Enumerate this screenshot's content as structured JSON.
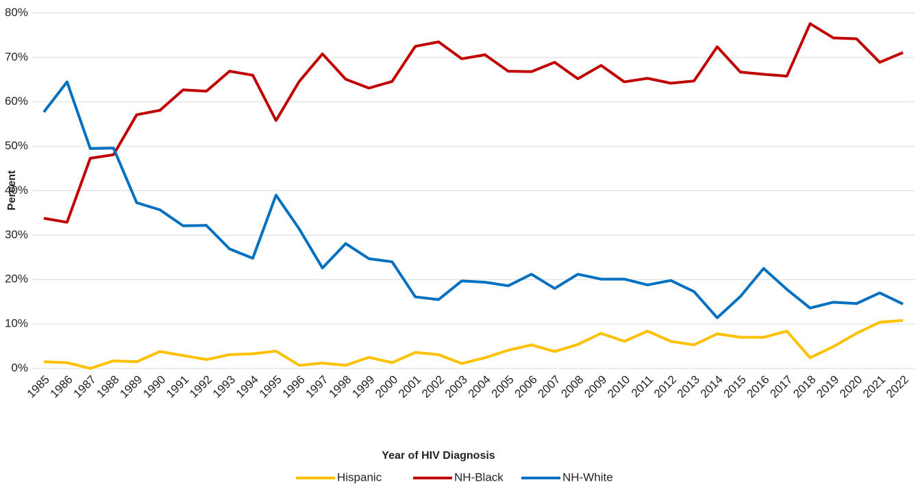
{
  "chart_data": {
    "type": "line",
    "x_label": "Year of HIV Diagnosis",
    "y_label": "Percent",
    "categories": [
      "1985",
      "1986",
      "1987",
      "1988",
      "1989",
      "1990",
      "1991",
      "1992",
      "1993",
      "1994",
      "1995",
      "1996",
      "1997",
      "1998",
      "1999",
      "2000",
      "2001",
      "2002",
      "2003",
      "2004",
      "2005",
      "2006",
      "2007",
      "2008",
      "2009",
      "2010",
      "2011",
      "2012",
      "2013",
      "2014",
      "2015",
      "2016",
      "2017",
      "2018",
      "2019",
      "2020",
      "2021",
      "2022"
    ],
    "series": [
      {
        "name": "Hispanic",
        "color": "#ffc000",
        "values": [
          1.5,
          1.3,
          0,
          1.7,
          1.5,
          3.8,
          2.9,
          2.0,
          3.1,
          3.3,
          3.9,
          0.7,
          1.2,
          0.7,
          2.5,
          1.3,
          3.6,
          3.1,
          1.1,
          2.4,
          4.1,
          5.3,
          3.8,
          5.4,
          7.9,
          6.1,
          8.4,
          6.1,
          5.3,
          7.8,
          7.0,
          7.0,
          8.4,
          2.4,
          4.9,
          7.9,
          10.4,
          10.8
        ]
      },
      {
        "name": "NH-Black",
        "color": "#c00000",
        "values": [
          33.8,
          32.9,
          47.3,
          48.1,
          57.1,
          58.1,
          62.7,
          62.4,
          66.9,
          66.0,
          55.8,
          64.6,
          70.8,
          65.1,
          63.1,
          64.6,
          72.5,
          73.5,
          69.7,
          70.6,
          66.9,
          66.8,
          68.9,
          65.2,
          68.2,
          64.5,
          65.3,
          64.2,
          64.7,
          72.4,
          66.7,
          66.2,
          65.8,
          77.6,
          74.4,
          74.2,
          68.9,
          71.1
        ]
      },
      {
        "name": "NH-White",
        "color": "#0070c0",
        "values": [
          57.7,
          64.5,
          49.5,
          49.6,
          37.3,
          35.7,
          32.1,
          32.2,
          26.9,
          24.8,
          39.0,
          31.4,
          22.6,
          28.1,
          24.7,
          24.0,
          16.1,
          15.5,
          19.7,
          19.4,
          18.6,
          21.2,
          18.0,
          21.2,
          20.1,
          20.1,
          18.8,
          19.8,
          17.3,
          11.4,
          16.2,
          22.5,
          17.8,
          13.6,
          14.9,
          14.6,
          17.0,
          14.5
        ]
      }
    ],
    "ylim": [
      0,
      80
    ],
    "yticks": [
      {
        "value": 0,
        "label": "0%"
      },
      {
        "value": 10,
        "label": "10%"
      },
      {
        "value": 20,
        "label": "20%"
      },
      {
        "value": 30,
        "label": "30%"
      },
      {
        "value": 40,
        "label": "40%"
      },
      {
        "value": 50,
        "label": "50%"
      },
      {
        "value": 60,
        "label": "60%"
      },
      {
        "value": 70,
        "label": "70%"
      },
      {
        "value": 80,
        "label": "80%"
      }
    ],
    "grid": true,
    "legend": "bottom"
  }
}
